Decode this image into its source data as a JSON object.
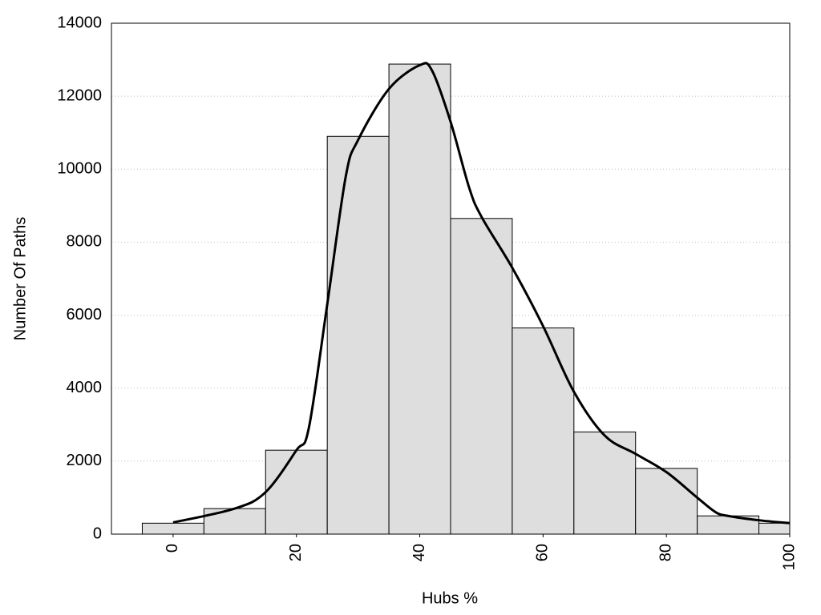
{
  "chart_data": {
    "type": "histogram",
    "x_label": "Hubs %",
    "y_label": "Number Of Paths",
    "bins": [
      -5,
      5,
      15,
      25,
      35,
      45,
      55,
      65,
      75,
      85,
      95,
      100
    ],
    "counts": [
      300,
      700,
      2300,
      10900,
      12880,
      8650,
      5650,
      2800,
      1800,
      500,
      300
    ],
    "bar_color": "#dedede",
    "curve": {
      "color": "#000000",
      "x": [
        0,
        10,
        15,
        20,
        22,
        25,
        28,
        30,
        35,
        40,
        42,
        45,
        48,
        50,
        55,
        60,
        65,
        70,
        75,
        80,
        85,
        88,
        90,
        95,
        100
      ],
      "values": [
        320,
        700,
        1150,
        2300,
        2900,
        6300,
        9800,
        10800,
        12200,
        12850,
        12700,
        11300,
        9500,
        8700,
        7300,
        5700,
        3900,
        2700,
        2200,
        1700,
        1000,
        600,
        500,
        380,
        300
      ]
    },
    "xlim": [
      -10,
      100
    ],
    "ylim": [
      0,
      14000
    ],
    "xticks": [
      0,
      20,
      40,
      60,
      80,
      100
    ],
    "yticks": [
      0,
      2000,
      4000,
      6000,
      8000,
      10000,
      12000,
      14000
    ],
    "grid": true
  }
}
